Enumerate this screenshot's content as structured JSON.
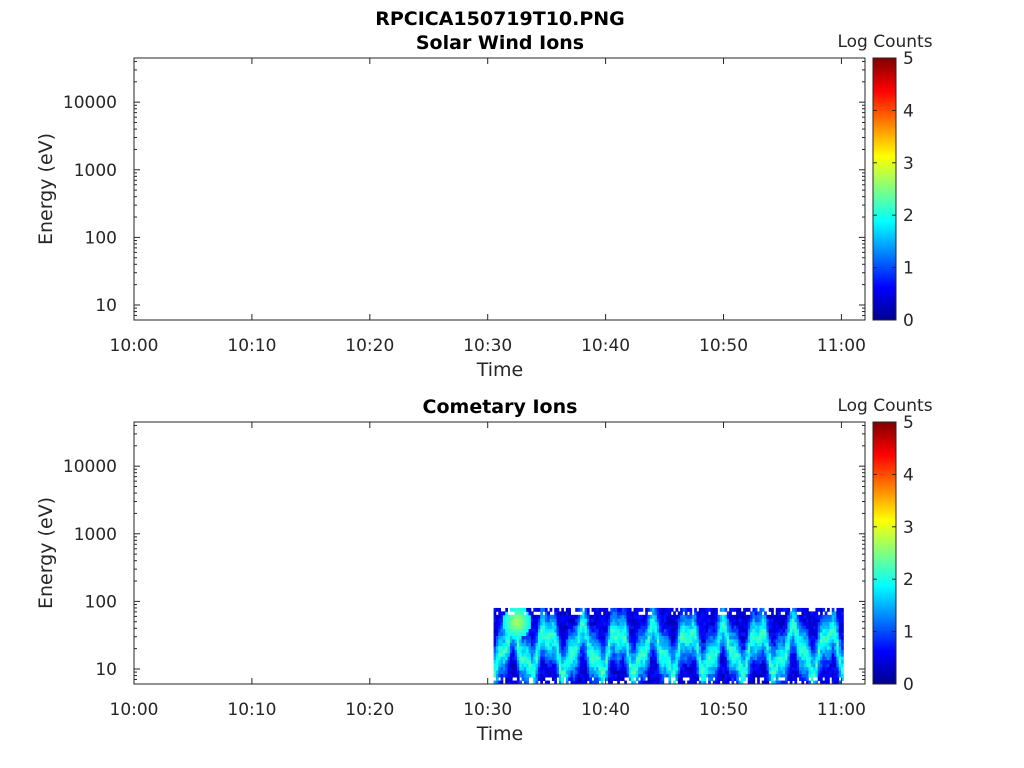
{
  "figure_title": "RPCICA150719T10.PNG",
  "chart_data": [
    {
      "type": "heatmap",
      "title": "Solar Wind Ions",
      "xlabel": "Time",
      "ylabel": "Energy (eV)",
      "x_tick_labels": [
        "10:00",
        "10:10",
        "10:20",
        "10:30",
        "10:40",
        "10:50",
        "11:00"
      ],
      "x_range": [
        "10:00",
        "11:02"
      ],
      "y_scale": "log",
      "y_tick_labels": [
        "10",
        "100",
        "1000",
        "10000"
      ],
      "ylim": [
        6,
        45000
      ],
      "colorbar": {
        "label": "Log Counts",
        "range": [
          0,
          5
        ],
        "tick_labels": [
          "0",
          "1",
          "2",
          "3",
          "4",
          "5"
        ],
        "colormap": "jet"
      },
      "data": []
    },
    {
      "type": "heatmap",
      "title": "Cometary Ions",
      "xlabel": "Time",
      "ylabel": "Energy (eV)",
      "x_tick_labels": [
        "10:00",
        "10:10",
        "10:20",
        "10:30",
        "10:40",
        "10:50",
        "11:00"
      ],
      "x_range": [
        "10:00",
        "11:02"
      ],
      "y_scale": "log",
      "y_tick_labels": [
        "10",
        "100",
        "1000",
        "10000"
      ],
      "ylim": [
        6,
        45000
      ],
      "colorbar": {
        "label": "Log Counts",
        "range": [
          0,
          5
        ],
        "tick_labels": [
          "0",
          "1",
          "2",
          "3",
          "4",
          "5"
        ],
        "colormap": "jet"
      },
      "data": {
        "time_range": [
          "10:30:30",
          "11:00:10"
        ],
        "energy_range_eV": [
          6,
          80
        ],
        "typical_log_counts": [
          0.5,
          2.2
        ],
        "peak_log_counts": 2.8,
        "peak_time": "10:32:30",
        "peak_energy_eV": 50
      }
    }
  ]
}
